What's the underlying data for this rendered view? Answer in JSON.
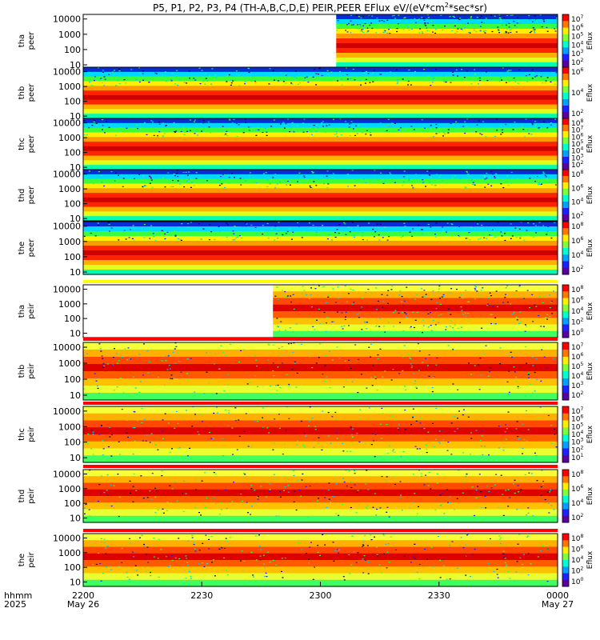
{
  "title": "P5, P1, P2, P3, P4 (TH-A,B,C,D,E) PEIR,PEER EFlux eV/(eV*cm^2*sec*sr)",
  "title_parts": {
    "pre": "P5, P1, P2, P3, P4 (TH-A,B,C,D,E) PEIR,PEER EFlux eV/(eV*cm",
    "sup1": "2",
    "mid": "*sec*sr)"
  },
  "time_axis": {
    "corner_top": "hhmm",
    "corner_bottom": "2025",
    "ticks": [
      {
        "label": "2200",
        "sub": "May 26",
        "t": 0
      },
      {
        "label": "2230",
        "sub": "",
        "t": 30
      },
      {
        "label": "2300",
        "sub": "",
        "t": 60
      },
      {
        "label": "2330",
        "sub": "",
        "t": 90
      },
      {
        "label": "0000",
        "sub": "May 27",
        "t": 120
      }
    ],
    "range_minutes": [
      0,
      120
    ]
  },
  "colorbar_label": "Eflux",
  "chart_data": [
    {
      "type": "heatmap",
      "probe": "tha",
      "species": "peer",
      "ylabel_top": "tha",
      "ylabel_bottom": "peer",
      "yticks": [
        "10000",
        "1000",
        "100",
        "10"
      ],
      "ylim": [
        7,
        20000
      ],
      "scale": "log",
      "cbar_ticks": [
        "10^7",
        "10^6",
        "10^5",
        "10^4",
        "10^3",
        "10^2"
      ],
      "data_start_minute": 64,
      "top_strip": false
    },
    {
      "type": "heatmap",
      "probe": "thb",
      "species": "peer",
      "ylabel_top": "thb",
      "ylabel_bottom": "peer",
      "yticks": [
        "10000",
        "1000",
        "100",
        "10"
      ],
      "ylim": [
        7,
        20000
      ],
      "scale": "log",
      "cbar_ticks": [
        "10^6",
        "10^4",
        "10^2"
      ],
      "data_start_minute": 0,
      "top_strip": false
    },
    {
      "type": "heatmap",
      "probe": "thc",
      "species": "peer",
      "ylabel_top": "thc",
      "ylabel_bottom": "peer",
      "yticks": [
        "10000",
        "1000",
        "100",
        "10"
      ],
      "ylim": [
        7,
        20000
      ],
      "scale": "log",
      "cbar_ticks": [
        "10^8",
        "10^7",
        "10^6",
        "10^5",
        "10^4",
        "10^3",
        "10^2"
      ],
      "data_start_minute": 0,
      "top_strip": false
    },
    {
      "type": "heatmap",
      "probe": "thd",
      "species": "peer",
      "ylabel_top": "thd",
      "ylabel_bottom": "peer",
      "yticks": [
        "10000",
        "1000",
        "100",
        "10"
      ],
      "ylim": [
        7,
        20000
      ],
      "scale": "log",
      "cbar_ticks": [
        "10^8",
        "10^6",
        "10^4",
        "10^2"
      ],
      "data_start_minute": 0,
      "top_strip": false
    },
    {
      "type": "heatmap",
      "probe": "the",
      "species": "peer",
      "ylabel_top": "the",
      "ylabel_bottom": "peer",
      "yticks": [
        "10000",
        "1000",
        "100",
        "10"
      ],
      "ylim": [
        7,
        20000
      ],
      "scale": "log",
      "cbar_ticks": [
        "10^8",
        "10^6",
        "10^4",
        "10^2"
      ],
      "data_start_minute": 0,
      "top_strip": false
    },
    {
      "type": "heatmap",
      "probe": "tha",
      "species": "peir",
      "ylabel_top": "tha",
      "ylabel_bottom": "peir",
      "yticks": [
        "10000",
        "1000",
        "100",
        "10"
      ],
      "ylim": [
        5,
        20000
      ],
      "scale": "log",
      "cbar_ticks": [
        "10^8",
        "10^6",
        "10^4",
        "10^2",
        "10^0"
      ],
      "data_start_minute": 48,
      "top_strip": true
    },
    {
      "type": "heatmap",
      "probe": "thb",
      "species": "peir",
      "ylabel_top": "thb",
      "ylabel_bottom": "peir",
      "yticks": [
        "10000",
        "1000",
        "100",
        "10"
      ],
      "ylim": [
        5,
        20000
      ],
      "scale": "log",
      "cbar_ticks": [
        "10^7",
        "10^6",
        "10^5",
        "10^4",
        "10^3",
        "10^2"
      ],
      "data_start_minute": 0,
      "top_strip": true
    },
    {
      "type": "heatmap",
      "probe": "thc",
      "species": "peir",
      "ylabel_top": "thc",
      "ylabel_bottom": "peir",
      "yticks": [
        "10000",
        "1000",
        "100",
        "10"
      ],
      "ylim": [
        5,
        20000
      ],
      "scale": "log",
      "cbar_ticks": [
        "10^7",
        "10^6",
        "10^5",
        "10^4",
        "10^3",
        "10^2",
        "10^1"
      ],
      "data_start_minute": 0,
      "top_strip": true
    },
    {
      "type": "heatmap",
      "probe": "thd",
      "species": "peir",
      "ylabel_top": "thd",
      "ylabel_bottom": "peir",
      "yticks": [
        "10000",
        "1000",
        "100",
        "10"
      ],
      "ylim": [
        5,
        20000
      ],
      "scale": "log",
      "cbar_ticks": [
        "10^8",
        "10^6",
        "10^4",
        "10^2"
      ],
      "data_start_minute": 0,
      "top_strip": true
    },
    {
      "type": "heatmap",
      "probe": "the",
      "species": "peir",
      "ylabel_top": "the",
      "ylabel_bottom": "peir",
      "yticks": [
        "10000",
        "1000",
        "100",
        "10"
      ],
      "ylim": [
        5,
        20000
      ],
      "scale": "log",
      "cbar_ticks": [
        "10^8",
        "10^6",
        "10^4",
        "10^2",
        "10^0"
      ],
      "data_start_minute": 0,
      "top_strip": true
    }
  ]
}
